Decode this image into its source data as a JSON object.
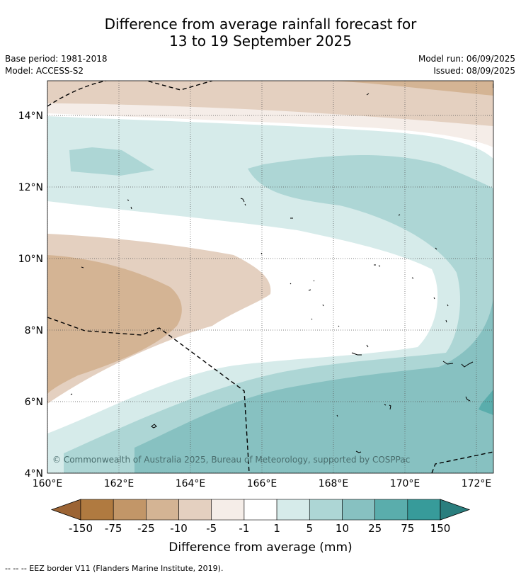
{
  "title_line1": "Difference from average rainfall forecast for",
  "title_line2": "13 to 19 September 2025",
  "base_period": "Base period: 1981-2018",
  "model": "Model: ACCESS-S2",
  "model_run": "Model run: 06/09/2025",
  "issued": "Issued: 08/09/2025",
  "copyright": "© Commonwealth of Australia 2025, Bureau of Meteorology, supported by COSPPac",
  "footnote": "--  --  -- EEZ border V11 (Flanders Marine Institute, 2019).",
  "map": {
    "lat_labels": [
      "14°N",
      "12°N",
      "10°N",
      "8°N",
      "6°N",
      "4°N"
    ],
    "lon_labels": [
      "160°E",
      "162°E",
      "164°E",
      "166°E",
      "168°E",
      "170°E",
      "172°E"
    ],
    "lon_range": [
      160,
      172.6
    ],
    "lat_range": [
      4,
      15
    ]
  },
  "colorbar": {
    "title": "Difference from average (mm)",
    "tick_labels": [
      "-150",
      "-75",
      "-25",
      "-10",
      "-5",
      "-1",
      "1",
      "5",
      "10",
      "25",
      "75",
      "150"
    ],
    "colors": [
      "#9c6434",
      "#b07a40",
      "#c29668",
      "#d4b494",
      "#e4d0c0",
      "#f5ede8",
      "#ffffff",
      "#d6ebea",
      "#add6d5",
      "#87c1c1",
      "#5aadac",
      "#379b9a",
      "#2a7e7e"
    ]
  }
}
